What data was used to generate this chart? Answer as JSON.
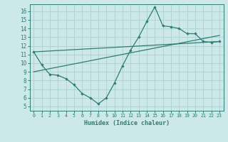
{
  "xlabel": "Humidex (Indice chaleur)",
  "xlim": [
    -0.5,
    23.5
  ],
  "ylim": [
    4.5,
    16.8
  ],
  "yticks": [
    5,
    6,
    7,
    8,
    9,
    10,
    11,
    12,
    13,
    14,
    15,
    16
  ],
  "xticks": [
    0,
    1,
    2,
    3,
    4,
    5,
    6,
    7,
    8,
    9,
    10,
    11,
    12,
    13,
    14,
    15,
    16,
    17,
    18,
    19,
    20,
    21,
    22,
    23
  ],
  "bg_color": "#cde8e8",
  "line_color": "#2e7d72",
  "grid_color": "#b0d4d4",
  "line1_x": [
    0,
    1,
    2,
    3,
    4,
    5,
    6,
    7,
    8,
    9,
    10,
    11,
    12,
    13,
    14,
    15,
    16,
    17,
    18,
    19,
    20,
    21,
    22,
    23
  ],
  "line1_y": [
    11.3,
    9.8,
    8.7,
    8.6,
    8.2,
    7.5,
    6.5,
    6.0,
    5.3,
    6.0,
    7.7,
    9.7,
    11.5,
    13.0,
    14.8,
    16.5,
    14.3,
    14.2,
    14.0,
    13.4,
    13.4,
    12.5,
    12.4,
    12.5
  ],
  "line2_x": [
    0,
    23
  ],
  "line2_y": [
    11.3,
    12.5
  ],
  "line3_x": [
    0,
    23
  ],
  "line3_y": [
    9.0,
    13.2
  ]
}
